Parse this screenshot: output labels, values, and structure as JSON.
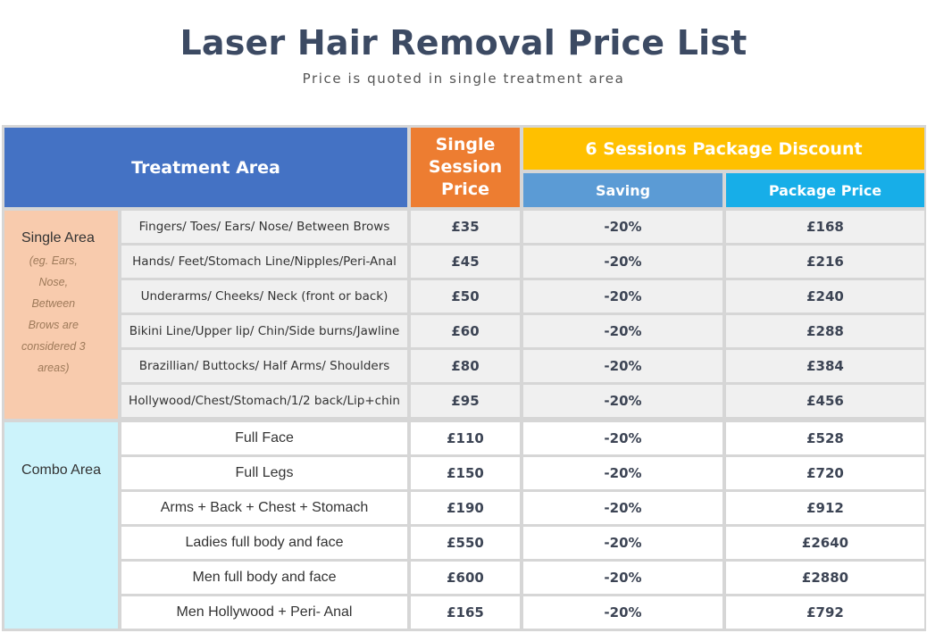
{
  "title": "Laser Hair Removal Price List",
  "subtitle": "Price is quoted  in single treatment area",
  "headers": {
    "treatment_area": "Treatment Area",
    "single_session_line1": "Single",
    "single_session_line2": "Session",
    "single_session_line3": "Price",
    "package_discount": "6 Sessions Package Discount",
    "saving": "Saving",
    "package_price": "Package Price"
  },
  "categories": {
    "single": {
      "label": "Single Area",
      "note_lines": [
        "(eg. Ears,",
        "Nose,",
        "Between",
        "Brows are",
        "considered  3",
        "areas)"
      ]
    },
    "combo": {
      "label": "Combo Area"
    }
  },
  "rows": [
    {
      "area": "Fingers/ Toes/ Ears/ Nose/ Between Brows",
      "price": "£35",
      "saving": "-20%",
      "package": "£168"
    },
    {
      "area": "Hands/ Feet/Stomach Line/Nipples/Peri-Anal",
      "price": "£45",
      "saving": "-20%",
      "package": "£216"
    },
    {
      "area": "Underarms/ Cheeks/ Neck (front or back)",
      "price": "£50",
      "saving": "-20%",
      "package": "£240"
    },
    {
      "area": "Bikini Line/Upper lip/ Chin/Side burns/Jawline",
      "price": "£60",
      "saving": "-20%",
      "package": "£288"
    },
    {
      "area": "Brazillian/ Buttocks/ Half Arms/ Shoulders",
      "price": "£80",
      "saving": "-20%",
      "package": "£384"
    },
    {
      "area": "Hollywood/Chest/Stomach/1/2  back/Lip+chin",
      "price": "£95",
      "saving": "-20%",
      "package": "£456"
    },
    {
      "area": "Full Face",
      "price": "£110",
      "saving": "-20%",
      "package": "£528"
    },
    {
      "area": "Full Legs",
      "price": "£150",
      "saving": "-20%",
      "package": "£720"
    },
    {
      "area": "Arms + Back + Chest + Stomach",
      "price": "£190",
      "saving": "-20%",
      "package": "£912"
    },
    {
      "area": "Ladies full body and face",
      "price": "£550",
      "saving": "-20%",
      "package": "£2640"
    },
    {
      "area": "Men full body and face",
      "price": "£600",
      "saving": "-20%",
      "package": "£2880"
    },
    {
      "area": "Men Hollywood  + Peri- Anal",
      "price": "£165",
      "saving": "-20%",
      "package": "£792"
    }
  ]
}
